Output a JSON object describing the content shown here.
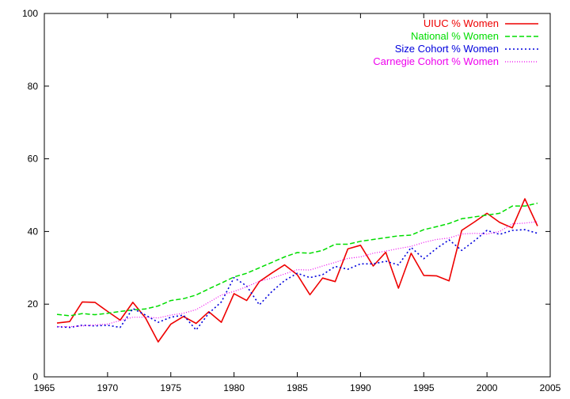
{
  "chart_data": {
    "type": "line",
    "title": "",
    "xlabel": "",
    "ylabel": "",
    "xlim": [
      1965,
      2005
    ],
    "ylim": [
      0,
      100
    ],
    "xticks": [
      1965,
      1970,
      1975,
      1980,
      1985,
      1990,
      1995,
      2000,
      2005
    ],
    "yticks": [
      0,
      20,
      40,
      60,
      80,
      100
    ],
    "grid": false,
    "legend": "top-right",
    "x": [
      1966,
      1967,
      1968,
      1969,
      1970,
      1971,
      1972,
      1973,
      1974,
      1975,
      1976,
      1977,
      1978,
      1979,
      1980,
      1981,
      1982,
      1983,
      1984,
      1985,
      1986,
      1987,
      1988,
      1989,
      1990,
      1991,
      1992,
      1993,
      1994,
      1995,
      1996,
      1997,
      1998,
      1999,
      2000,
      2001,
      2002,
      2003,
      2004
    ],
    "series": [
      {
        "name": "UIUC % Women",
        "color": "#ee0000",
        "style": "solid",
        "values": [
          14.8,
          15.2,
          20.6,
          20.5,
          18.0,
          15.6,
          20.5,
          16.2,
          9.6,
          14.5,
          16.6,
          14.7,
          17.9,
          15.0,
          22.9,
          21.0,
          26.2,
          28.6,
          30.8,
          28.1,
          22.6,
          27.2,
          26.2,
          35.2,
          36.2,
          30.5,
          34.3,
          24.4,
          34.0,
          27.9,
          27.8,
          26.4,
          40.3,
          42.6,
          45.0,
          42.5,
          41.0,
          49.0,
          41.5
        ]
      },
      {
        "name": "National % Women",
        "color": "#00dd00",
        "style": "dashed",
        "values": [
          17.2,
          16.8,
          17.4,
          17.1,
          17.5,
          18.0,
          18.4,
          18.7,
          19.5,
          21.0,
          21.5,
          22.5,
          24.2,
          25.8,
          27.5,
          28.5,
          30.0,
          31.5,
          33.0,
          34.2,
          34.0,
          34.8,
          36.5,
          36.5,
          37.3,
          37.8,
          38.3,
          38.8,
          39.0,
          40.5,
          41.3,
          42.2,
          43.5,
          44.0,
          44.5,
          45.0,
          47.0,
          47.0,
          47.8
        ]
      },
      {
        "name": "Size Cohort % Women",
        "color": "#0000dd",
        "style": "dotted",
        "values": [
          13.8,
          13.6,
          14.2,
          14.0,
          14.2,
          13.6,
          18.8,
          17.0,
          15.0,
          16.4,
          17.0,
          12.9,
          17.5,
          20.6,
          27.3,
          25.0,
          19.8,
          23.5,
          26.5,
          28.5,
          27.3,
          28.1,
          30.4,
          29.6,
          31.1,
          31.1,
          31.8,
          30.8,
          35.6,
          32.5,
          35.3,
          37.7,
          34.8,
          37.4,
          40.3,
          39.2,
          40.3,
          40.5,
          39.5
        ]
      },
      {
        "name": "Carnegie Cohort % Women",
        "color": "#ee00ee",
        "style": "fine-dotted",
        "values": [
          13.8,
          13.8,
          14.0,
          14.3,
          14.5,
          15.5,
          16.4,
          16.4,
          16.2,
          17.0,
          17.5,
          18.5,
          20.5,
          22.5,
          23.5,
          24.8,
          26.3,
          27.2,
          28.3,
          29.5,
          29.4,
          30.5,
          31.5,
          32.6,
          33.0,
          34.0,
          34.6,
          35.3,
          35.9,
          37.0,
          37.8,
          38.2,
          39.3,
          39.5,
          39.3,
          40.0,
          42.1,
          42.3,
          42.7
        ]
      }
    ]
  }
}
